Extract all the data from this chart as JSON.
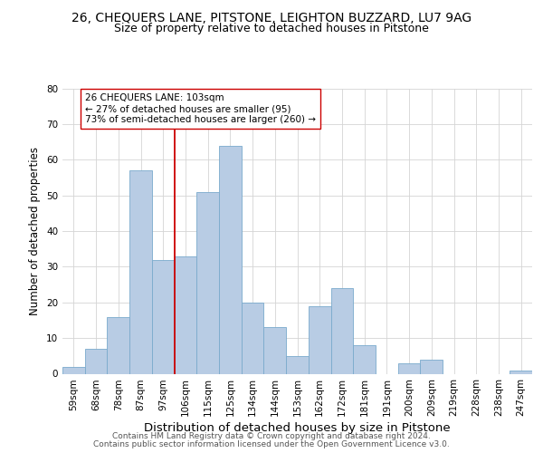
{
  "title1": "26, CHEQUERS LANE, PITSTONE, LEIGHTON BUZZARD, LU7 9AG",
  "title2": "Size of property relative to detached houses in Pitstone",
  "xlabel": "Distribution of detached houses by size in Pitstone",
  "ylabel": "Number of detached properties",
  "bar_labels": [
    "59sqm",
    "68sqm",
    "78sqm",
    "87sqm",
    "97sqm",
    "106sqm",
    "115sqm",
    "125sqm",
    "134sqm",
    "144sqm",
    "153sqm",
    "162sqm",
    "172sqm",
    "181sqm",
    "191sqm",
    "200sqm",
    "209sqm",
    "219sqm",
    "228sqm",
    "238sqm",
    "247sqm"
  ],
  "bar_values": [
    2,
    7,
    16,
    57,
    32,
    33,
    51,
    64,
    20,
    13,
    5,
    19,
    24,
    8,
    0,
    3,
    4,
    0,
    0,
    0,
    1
  ],
  "bar_color": "#b8cce4",
  "bar_edge_color": "#7aaacc",
  "vline_x": 4.5,
  "vline_color": "#cc0000",
  "annotation_line1": "26 CHEQUERS LANE: 103sqm",
  "annotation_line2": "← 27% of detached houses are smaller (95)",
  "annotation_line3": "73% of semi-detached houses are larger (260) →",
  "annotation_box_color": "#ffffff",
  "annotation_box_edge": "#cc0000",
  "ylim": [
    0,
    80
  ],
  "yticks": [
    0,
    10,
    20,
    30,
    40,
    50,
    60,
    70,
    80
  ],
  "footer1": "Contains HM Land Registry data © Crown copyright and database right 2024.",
  "footer2": "Contains public sector information licensed under the Open Government Licence v3.0.",
  "title1_fontsize": 10,
  "title2_fontsize": 9,
  "xlabel_fontsize": 9.5,
  "ylabel_fontsize": 8.5,
  "tick_fontsize": 7.5,
  "annotation_fontsize": 7.5,
  "footer_fontsize": 6.5
}
